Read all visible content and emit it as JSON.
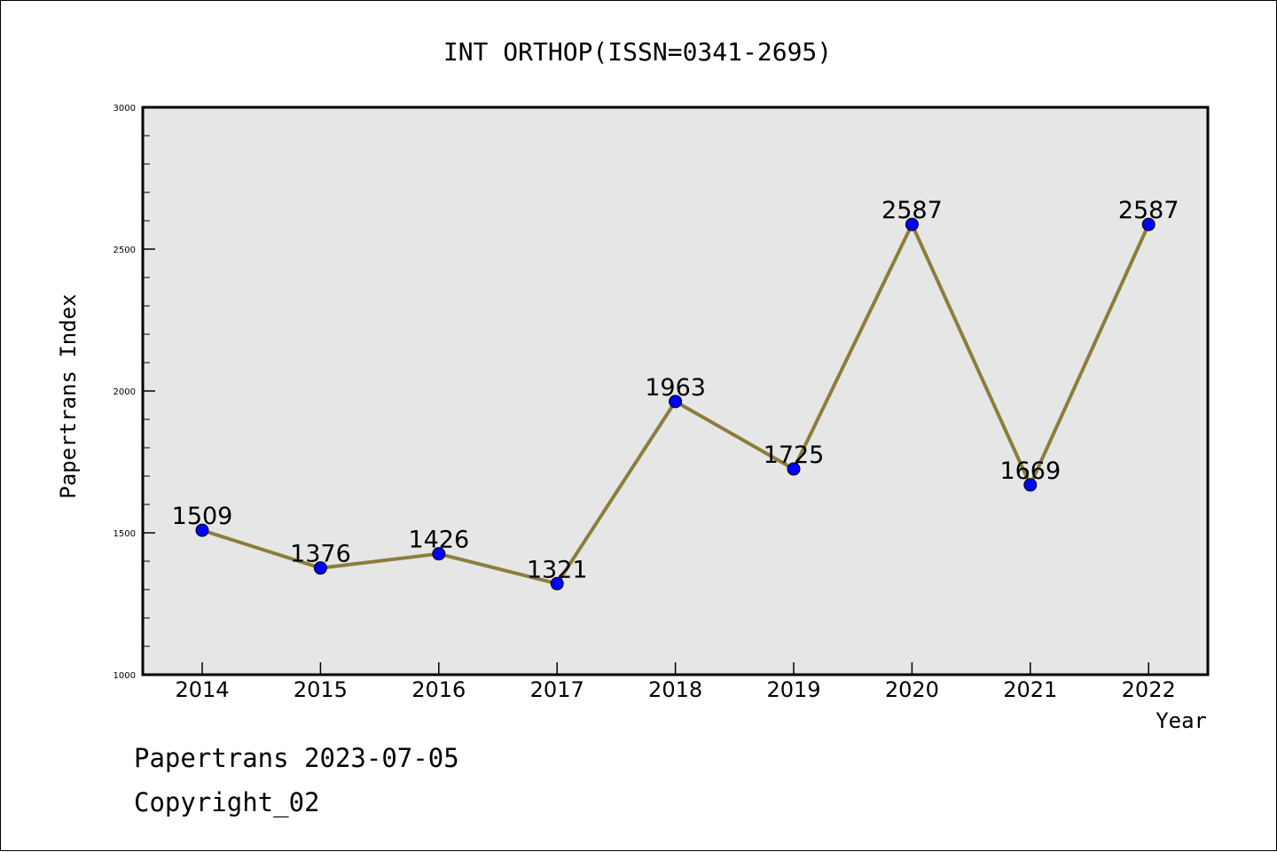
{
  "chart_data": {
    "type": "line",
    "title": "INT ORTHOP(ISSN=0341-2695)",
    "xlabel": "Year",
    "ylabel": "Papertrans Index",
    "categories": [
      "2014",
      "2015",
      "2016",
      "2017",
      "2018",
      "2019",
      "2020",
      "2021",
      "2022"
    ],
    "series": [
      {
        "values": [
          1509,
          1376,
          1426,
          1321,
          1963,
          1725,
          2587,
          1669,
          2587
        ]
      }
    ],
    "ylim": [
      1000,
      3000
    ],
    "yticks": [
      "1000",
      "1500",
      "2000",
      "2500",
      "3000"
    ],
    "grid": false,
    "legend": "none",
    "colors": {
      "line": "#8c7d3c",
      "marker": "#0000ff",
      "plot_background": "#e6e6e6"
    }
  },
  "footer": {
    "date_line": "Papertrans 2023-07-05",
    "copyright": "Copyright_02"
  }
}
